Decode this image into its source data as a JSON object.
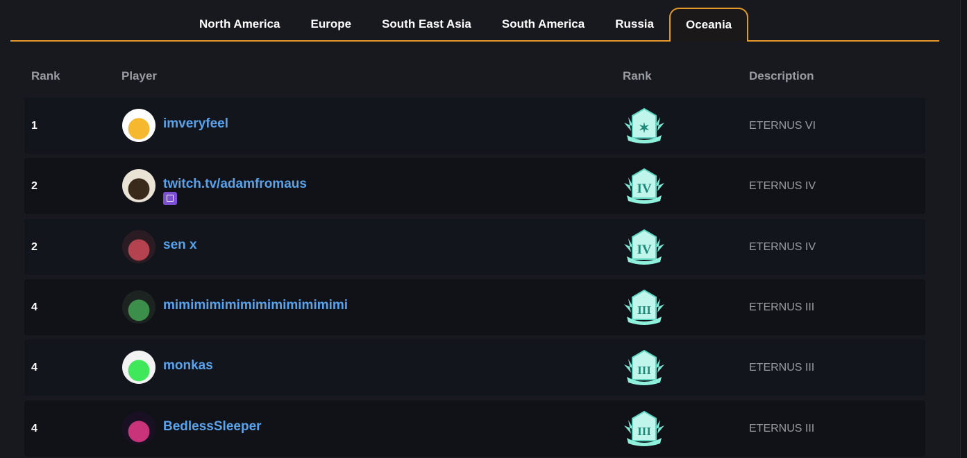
{
  "tabs": [
    {
      "label": "North America",
      "active": false
    },
    {
      "label": "Europe",
      "active": false
    },
    {
      "label": "South East Asia",
      "active": false
    },
    {
      "label": "South America",
      "active": false
    },
    {
      "label": "Russia",
      "active": false
    },
    {
      "label": "Oceania",
      "active": true
    }
  ],
  "table": {
    "headers": {
      "rank": "Rank",
      "player": "Player",
      "tier": "Rank",
      "description": "Description"
    },
    "rows": [
      {
        "rank": "1",
        "player": "imveryfeel",
        "tier_glyph": "✶",
        "description": "ETERNUS VI",
        "avatar": "laughing-emoji",
        "twitch": false
      },
      {
        "rank": "2",
        "player": "twitch.tv/adamfromaus",
        "tier_glyph": "IV",
        "description": "ETERNUS IV",
        "avatar": "bearded-cartoon",
        "twitch": true
      },
      {
        "rank": "2",
        "player": "sen x",
        "tier_glyph": "IV",
        "description": "ETERNUS IV",
        "avatar": "anime-girl",
        "twitch": false
      },
      {
        "rank": "4",
        "player": "mimimimimimimimimimimimi",
        "tier_glyph": "III",
        "description": "ETERNUS III",
        "avatar": "webcam-photo",
        "twitch": false
      },
      {
        "rank": "4",
        "player": "monkas",
        "tier_glyph": "III",
        "description": "ETERNUS III",
        "avatar": "green-hair-character",
        "twitch": false
      },
      {
        "rank": "4",
        "player": "BedlessSleeper",
        "tier_glyph": "III",
        "description": "ETERNUS III",
        "avatar": "pixel-character",
        "twitch": false
      }
    ]
  },
  "colors": {
    "accent": "#e39a2a",
    "link": "#5aa2ea",
    "badge": "#6fe0cf",
    "twitch": "#7d4fd1"
  }
}
